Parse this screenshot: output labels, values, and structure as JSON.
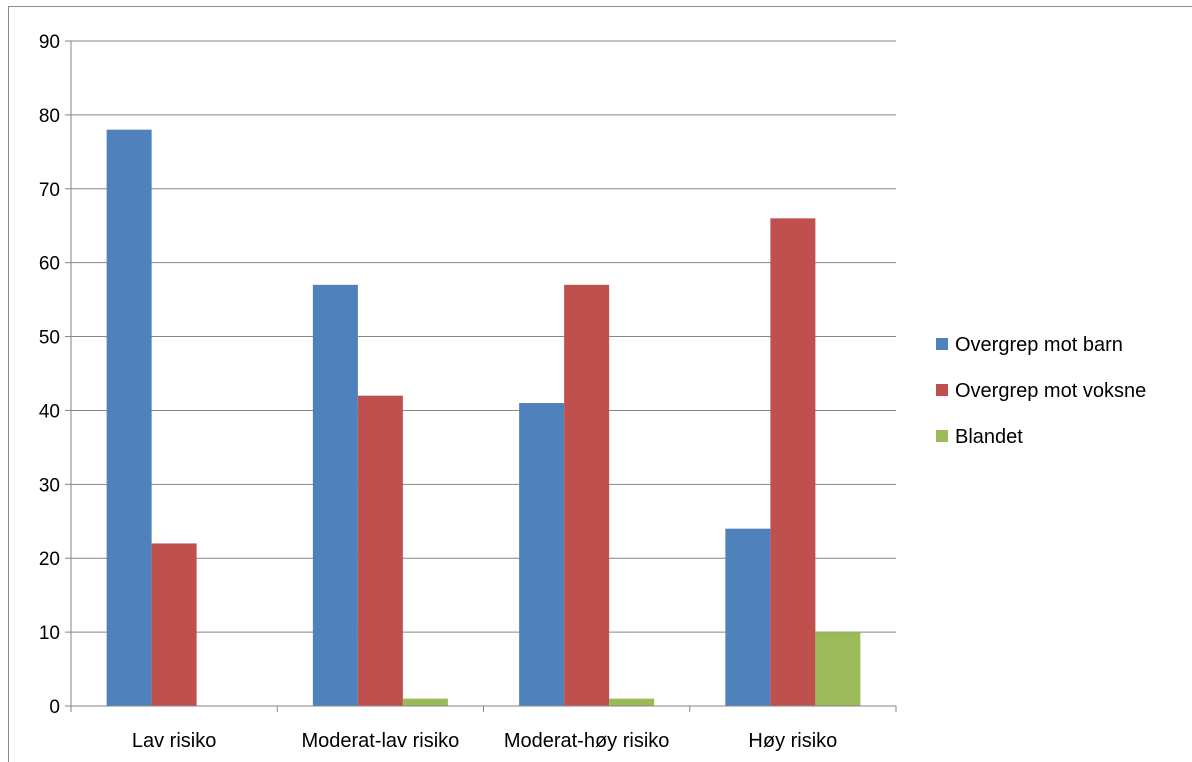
{
  "chart_data": {
    "type": "bar",
    "categories": [
      "Lav risiko",
      "Moderat-lav risiko",
      "Moderat-høy risiko",
      "Høy risiko"
    ],
    "series": [
      {
        "name": "Overgrep mot barn",
        "color": "#4f81bd",
        "values": [
          78,
          57,
          41,
          24
        ]
      },
      {
        "name": "Overgrep mot voksne",
        "color": "#c0504d",
        "values": [
          22,
          42,
          57,
          66
        ]
      },
      {
        "name": "Blandet",
        "color": "#9bbb59",
        "values": [
          0,
          1,
          1,
          10
        ]
      }
    ],
    "ylim": [
      0,
      90
    ],
    "yticks": [
      0,
      10,
      20,
      30,
      40,
      50,
      60,
      70,
      80,
      90
    ],
    "grid": true,
    "legend_position": "right",
    "gridline_color": "#868686"
  }
}
